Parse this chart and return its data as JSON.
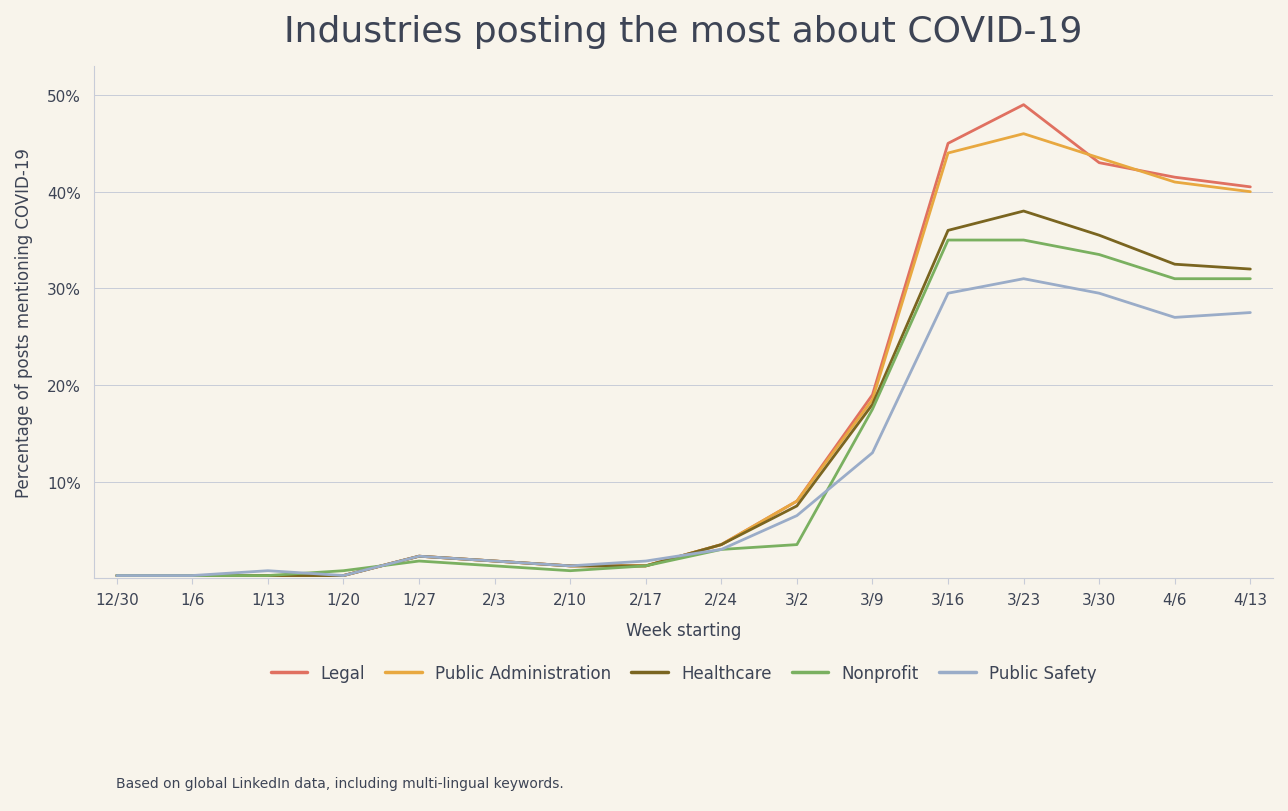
{
  "title": "Industries posting the most about COVID-19",
  "xlabel": "Week starting",
  "ylabel": "Percentage of posts mentioning COVID-19",
  "footnote": "Based on global LinkedIn data, including multi-lingual keywords.",
  "background_color": "#f8f4eb",
  "weeks": [
    "12/30",
    "1/6",
    "1/13",
    "1/20",
    "1/27",
    "2/3",
    "2/10",
    "2/17",
    "2/24",
    "3/2",
    "3/9",
    "3/16",
    "3/23",
    "3/30",
    "4/6",
    "4/13"
  ],
  "series": {
    "Legal": {
      "color": "#e07060",
      "values": [
        0.3,
        0.3,
        0.3,
        0.3,
        2.3,
        1.8,
        1.3,
        1.3,
        3.5,
        8.0,
        19.0,
        45.0,
        49.0,
        43.0,
        41.5,
        40.5
      ]
    },
    "Public Administration": {
      "color": "#e8a840",
      "values": [
        0.3,
        0.3,
        0.3,
        0.3,
        2.3,
        1.8,
        1.3,
        1.3,
        3.5,
        8.0,
        18.5,
        44.0,
        46.0,
        43.5,
        41.0,
        40.0
      ]
    },
    "Healthcare": {
      "color": "#7a6520",
      "values": [
        0.3,
        0.3,
        0.3,
        0.3,
        2.3,
        1.8,
        1.3,
        1.3,
        3.5,
        7.5,
        18.0,
        36.0,
        38.0,
        35.5,
        32.5,
        32.0
      ]
    },
    "Nonprofit": {
      "color": "#7ab060",
      "values": [
        0.3,
        0.3,
        0.3,
        0.8,
        1.8,
        1.3,
        0.8,
        1.3,
        3.0,
        3.5,
        17.5,
        35.0,
        35.0,
        33.5,
        31.0,
        31.0
      ]
    },
    "Public Safety": {
      "color": "#9aacc8",
      "values": [
        0.3,
        0.3,
        0.8,
        0.3,
        2.3,
        1.8,
        1.3,
        1.8,
        3.0,
        6.5,
        13.0,
        29.5,
        31.0,
        29.5,
        27.0,
        27.5
      ]
    }
  },
  "ylim": [
    0,
    53
  ],
  "yticks": [
    10,
    20,
    30,
    40,
    50
  ],
  "ytick_labels": [
    "10%",
    "20%",
    "30%",
    "40%",
    "50%"
  ],
  "title_fontsize": 26,
  "axis_label_fontsize": 12,
  "tick_fontsize": 11,
  "legend_fontsize": 12,
  "footnote_fontsize": 10,
  "line_width": 2.0,
  "title_color": "#3d4455",
  "tick_color": "#3d4455",
  "axis_label_color": "#3d4455",
  "legend_color": "#3d4455",
  "footnote_color": "#3d4455",
  "grid_color": "#c8ccd8",
  "spine_color": "#c8ccd8"
}
